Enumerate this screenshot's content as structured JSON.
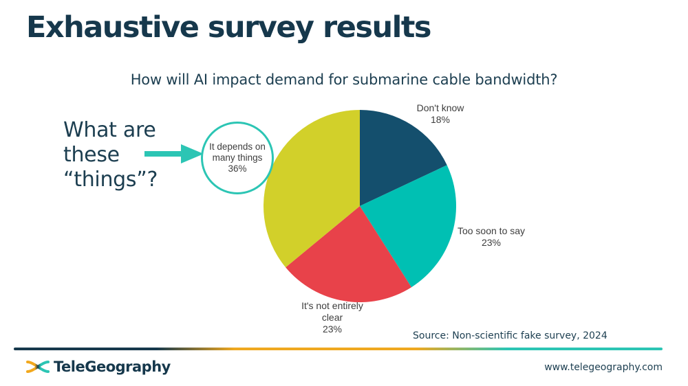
{
  "colors": {
    "title_navy": "#16384c",
    "text_navy": "#1c3e50",
    "label_gray": "#3d3d3d",
    "accent_teal": "#2cc5b4",
    "accent_orange": "#efa820",
    "pie_navy": "#144f6d",
    "pie_teal": "#00c0b3",
    "pie_red": "#e8424a",
    "pie_yellow": "#d2d02a"
  },
  "header": {
    "title": "Exhaustive survey results",
    "subtitle": "How will AI impact demand for submarine cable bandwidth?"
  },
  "annotation": {
    "lines": [
      "What are",
      "these",
      "“things”?"
    ]
  },
  "chart_data": {
    "type": "pie",
    "title": "How will AI impact demand for submarine cable bandwidth?",
    "start_angle_deg": 0,
    "direction": "clockwise",
    "slices": [
      {
        "label": "Don't know",
        "value": 18,
        "pct_label": "18%",
        "color": "#144f6d"
      },
      {
        "label": "Too soon to say",
        "value": 23,
        "pct_label": "23%",
        "color": "#00c0b3"
      },
      {
        "label": "It's not entirely clear",
        "value": 23,
        "pct_label": "23%",
        "color": "#e8424a"
      },
      {
        "label": "It depends on many things",
        "value": 36,
        "pct_label": "36%",
        "color": "#d2d02a"
      }
    ],
    "callout_labels": {
      "dont_know": [
        "Don't know",
        "18%"
      ],
      "too_soon": [
        "Too soon to say",
        "23%"
      ],
      "not_clear": [
        "It's not entirely",
        "clear",
        "23%"
      ],
      "depends": [
        "It depends on",
        "many things",
        "36%"
      ]
    }
  },
  "source": "Source: Non-scientific fake survey, 2024",
  "footer": {
    "logo_text": "TeleGeography",
    "url": "www.telegeography.com"
  }
}
